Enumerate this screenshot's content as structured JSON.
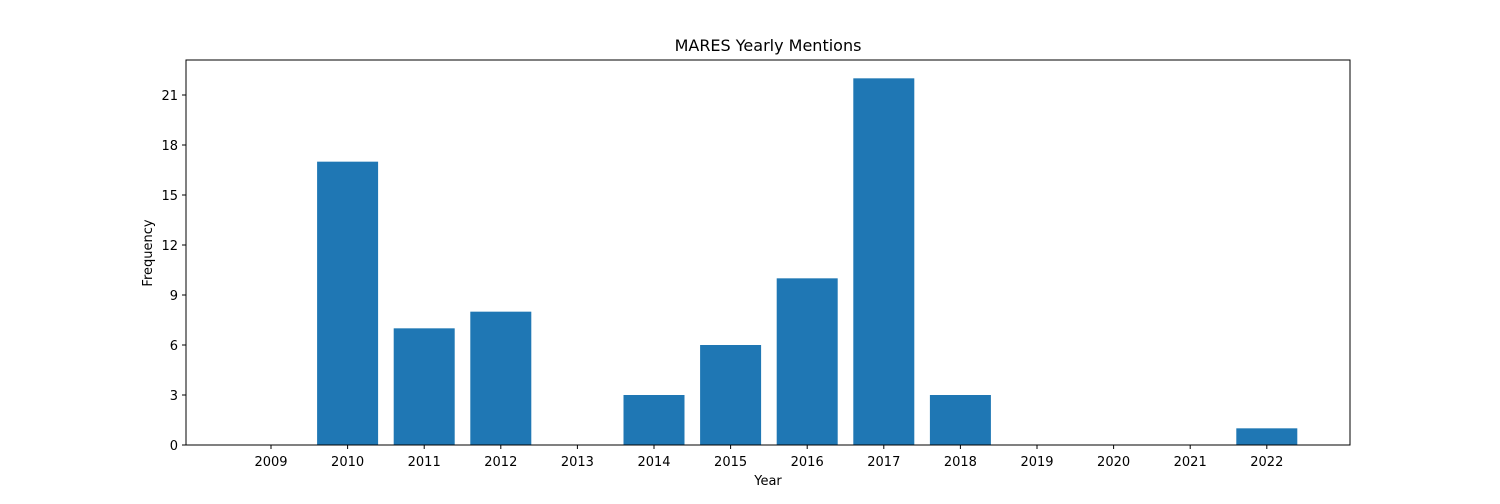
{
  "chart_data": {
    "type": "bar",
    "title": "MARES Yearly Mentions",
    "xlabel": "Year",
    "ylabel": "Frequency",
    "categories": [
      "2009",
      "2010",
      "2011",
      "2012",
      "2013",
      "2014",
      "2015",
      "2016",
      "2017",
      "2018",
      "2019",
      "2020",
      "2021",
      "2022"
    ],
    "values": [
      0,
      17,
      7,
      8,
      0,
      3,
      6,
      10,
      22,
      3,
      0,
      0,
      0,
      1
    ],
    "yticks": [
      0,
      3,
      6,
      9,
      12,
      15,
      18,
      21
    ],
    "ylim": [
      0,
      23.1
    ],
    "bar_color": "#1f77b4",
    "grid": false,
    "legend": "none"
  }
}
